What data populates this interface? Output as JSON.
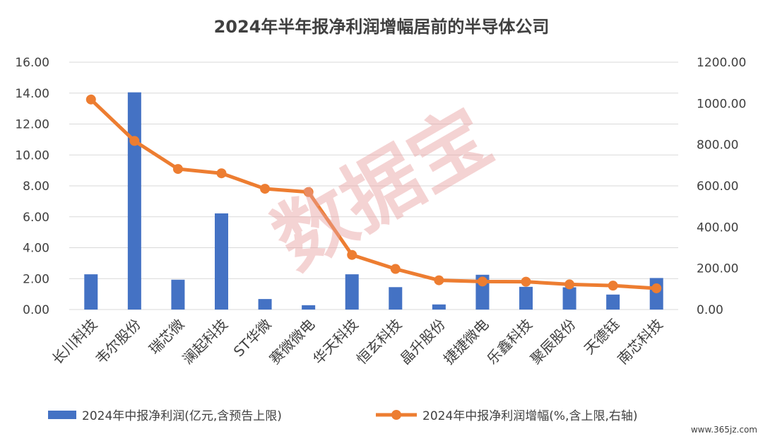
{
  "chart_data": {
    "type": "bar+line",
    "title": "2024年半年报净利润增幅居前的半导体公司",
    "categories": [
      "长川科技",
      "韦尔股份",
      "瑞芯微",
      "澜起科技",
      "ST华微",
      "赛微微电",
      "华天科技",
      "恒玄科技",
      "晶升股份",
      "捷捷微电",
      "乐鑫科技",
      "聚辰股份",
      "天德钰",
      "南芯科技"
    ],
    "series": [
      {
        "name": "2024年中报净利润(亿元,含预告上限)",
        "type": "bar",
        "axis": "left",
        "color": "#4472C4",
        "values": [
          2.28,
          14.05,
          1.93,
          6.22,
          0.68,
          0.28,
          2.28,
          1.45,
          0.33,
          2.25,
          1.47,
          1.44,
          0.97,
          2.04
        ]
      },
      {
        "name": "2024年中报净利润增幅(%,含上限,右轴)",
        "type": "line",
        "axis": "right",
        "color": "#ED7D31",
        "values": [
          1019,
          818,
          682,
          661,
          586,
          570,
          265,
          197,
          142,
          136,
          135,
          122,
          116,
          103
        ]
      }
    ],
    "y_left": {
      "min": 0,
      "max": 16,
      "ticks": [
        "0.00",
        "2.00",
        "4.00",
        "6.00",
        "8.00",
        "10.00",
        "12.00",
        "14.00",
        "16.00"
      ]
    },
    "y_right": {
      "min": 0,
      "max": 1200,
      "ticks": [
        "0.00",
        "200.00",
        "400.00",
        "600.00",
        "800.00",
        "1000.00",
        "1200.00"
      ]
    },
    "grid": true,
    "legend_position": "bottom"
  },
  "watermark": "数据宝",
  "site_mark": "www.365jz.com"
}
